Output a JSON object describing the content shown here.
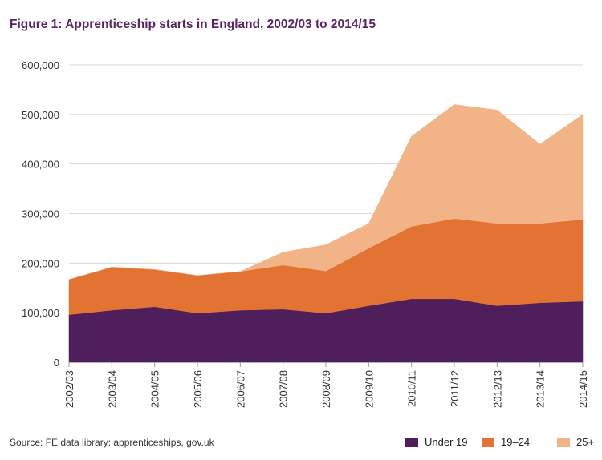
{
  "title": "Figure 1: Apprenticeship starts in England, 2002/03 to 2014/15",
  "source": "Source: FE data library: apprenticeships, gov.uk",
  "colors": {
    "title": "#5b2466",
    "under19": "#4f1f5c",
    "age19_24": "#e37333",
    "age25plus": "#f2b486",
    "grid": "#d9d9d9"
  },
  "chart_data": {
    "type": "area",
    "stacked": true,
    "title": "Figure 1: Apprenticeship starts in England, 2002/03 to 2014/15",
    "xlabel": "",
    "ylabel": "",
    "ylim": [
      0,
      600000
    ],
    "yticks": [
      0,
      100000,
      200000,
      300000,
      400000,
      500000,
      600000
    ],
    "ytick_labels": [
      "0",
      "100,000",
      "200,000",
      "300,000",
      "400,000",
      "500,000",
      "600,000"
    ],
    "grid": true,
    "legend_position": "bottom-right",
    "categories": [
      "2002/03",
      "2003/04",
      "2004/05",
      "2005/06",
      "2006/07",
      "2007/08",
      "2008/09",
      "2009/10",
      "2010/11",
      "2011/12",
      "2012/13",
      "2013/14",
      "2014/15"
    ],
    "series": [
      {
        "name": "Under 19",
        "values": [
          96000,
          105000,
          112000,
          99000,
          105000,
          107000,
          99000,
          114000,
          128000,
          128000,
          114000,
          120000,
          123000
        ]
      },
      {
        "name": "19–24",
        "values": [
          71000,
          87000,
          75000,
          76000,
          78000,
          89000,
          85000,
          116000,
          146000,
          162000,
          166000,
          160000,
          165000
        ]
      },
      {
        "name": "25+",
        "values": [
          0,
          0,
          0,
          0,
          0,
          26000,
          53000,
          50000,
          182000,
          230000,
          229000,
          160000,
          212000
        ]
      }
    ]
  }
}
